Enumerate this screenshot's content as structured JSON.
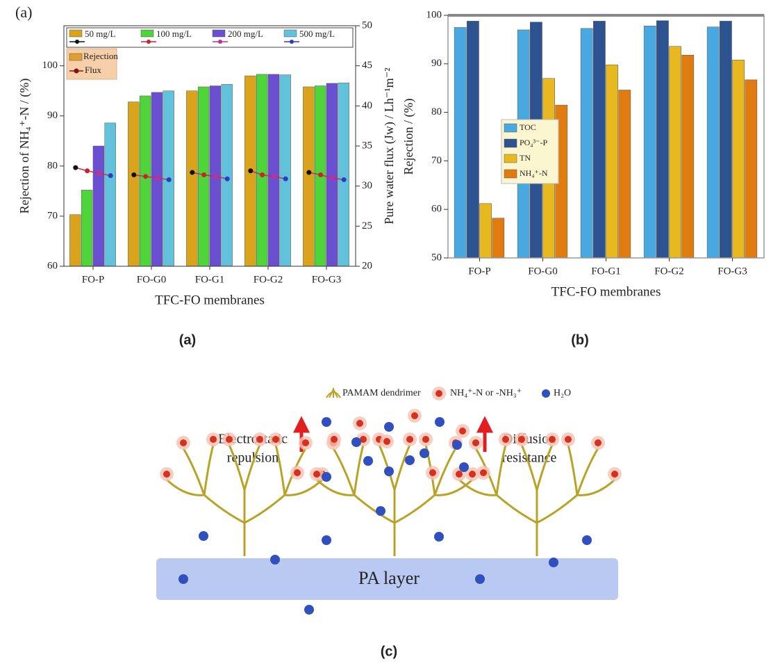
{
  "chart_data": [
    {
      "type": "bar",
      "panel_label": "(a)",
      "categories": [
        "FO-P",
        "FO-G0",
        "FO-G1",
        "FO-G2",
        "FO-G3"
      ],
      "x_label": "TFC-FO membranes",
      "y_label": "Rejection of NH₄⁺-N / (%)",
      "y2_label": "Pure water flux (Jw) / Lh⁻¹m⁻²",
      "bar_legend": "Rejection",
      "bar_legend_color": "#e0a030",
      "line_legend": "Flux",
      "line_legend_color": "#8b1010",
      "series": [
        {
          "name": "50 mg/L",
          "color": "#d9a41c",
          "flux_color": "#111111",
          "values": [
            70.3,
            92.8,
            95.0,
            98.0,
            95.8
          ],
          "flux": [
            32.3,
            31.4,
            31.7,
            31.9,
            31.7
          ]
        },
        {
          "name": "100 mg/L",
          "color": "#4fd43a",
          "flux_color": "#d0202a",
          "values": [
            75.2,
            94.0,
            95.8,
            98.3,
            96.0
          ],
          "flux": [
            31.9,
            31.2,
            31.4,
            31.4,
            31.4
          ]
        },
        {
          "name": "200 mg/L",
          "color": "#6a4fd0",
          "flux_color": "#c0309a",
          "values": [
            84.0,
            94.7,
            96.0,
            98.3,
            96.5
          ],
          "flux": [
            31.6,
            31.0,
            31.2,
            31.2,
            31.0
          ]
        },
        {
          "name": "500 mg/L",
          "color": "#62c2dc",
          "flux_color": "#2a3cc0",
          "values": [
            88.6,
            95.0,
            96.3,
            98.2,
            96.6
          ],
          "flux": [
            31.3,
            30.8,
            30.9,
            30.9,
            30.8
          ]
        }
      ],
      "ylim": [
        60,
        108
      ],
      "yticks": [
        60,
        70,
        80,
        90,
        100
      ],
      "y2lim": [
        20,
        50
      ],
      "y2ticks": [
        20,
        25,
        30,
        35,
        40,
        45,
        50
      ]
    },
    {
      "type": "bar",
      "categories": [
        "FO-P",
        "FO-G0",
        "FO-G1",
        "FO-G2",
        "FO-G3"
      ],
      "x_label": "TFC-FO membranes",
      "y_label": "Rejection / (%)",
      "series": [
        {
          "name": "TOC",
          "color": "#4aa8e0",
          "values": [
            97.5,
            97.0,
            97.3,
            97.8,
            97.6
          ]
        },
        {
          "name": "PO₄³⁻-P",
          "color": "#2c5290",
          "values": [
            98.8,
            98.6,
            98.8,
            98.9,
            98.8
          ]
        },
        {
          "name": "TN",
          "color": "#e8b820",
          "values": [
            61.2,
            87.0,
            89.8,
            93.6,
            90.8
          ]
        },
        {
          "name": "NH₄⁺-N",
          "color": "#e07b10",
          "values": [
            58.2,
            81.5,
            84.6,
            91.8,
            86.7
          ]
        }
      ],
      "ylim": [
        50,
        100
      ],
      "yticks": [
        50,
        60,
        70,
        80,
        90,
        100
      ]
    }
  ],
  "captions": [
    "(a)",
    "(b)",
    "(c)"
  ],
  "diagram": {
    "legend": [
      "PAMAM dendrimer",
      "NH₄⁺-N or -NH₃⁺",
      "H₂O"
    ],
    "left_label": [
      "Electrostatic",
      "repulsion"
    ],
    "right_label": [
      "Diffusion",
      "resistance"
    ],
    "layer_label": "PA layer"
  }
}
